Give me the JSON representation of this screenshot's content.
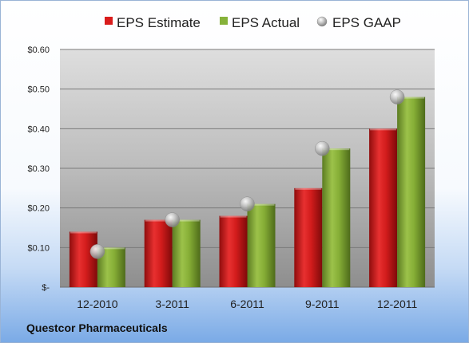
{
  "chart_data": {
    "type": "bar",
    "categories": [
      "12-2010",
      "3-2011",
      "6-2011",
      "9-2011",
      "12-2011"
    ],
    "series": [
      {
        "name": "EPS Estimate",
        "values": [
          0.14,
          0.17,
          0.18,
          0.25,
          0.4
        ],
        "color": "#d91c1c"
      },
      {
        "name": "EPS Actual",
        "values": [
          0.1,
          0.17,
          0.21,
          0.35,
          0.48
        ],
        "color": "#86b23a"
      },
      {
        "name": "EPS GAAP",
        "values": [
          0.09,
          0.17,
          0.21,
          0.35,
          0.48
        ],
        "color": "#b5b5b5",
        "mark": "sphere"
      }
    ],
    "yticks": [
      {
        "value": 0,
        "label": "$-"
      },
      {
        "value": 0.1,
        "label": "$0.10"
      },
      {
        "value": 0.2,
        "label": "$0.20"
      },
      {
        "value": 0.3,
        "label": "$0.30"
      },
      {
        "value": 0.4,
        "label": "$0.40"
      },
      {
        "value": 0.5,
        "label": "$0.50"
      },
      {
        "value": 0.6,
        "label": "$0.60"
      }
    ],
    "ylim": [
      0,
      0.6
    ],
    "grid": true,
    "legend_position": "top",
    "company": "Questcor Pharmaceuticals"
  }
}
